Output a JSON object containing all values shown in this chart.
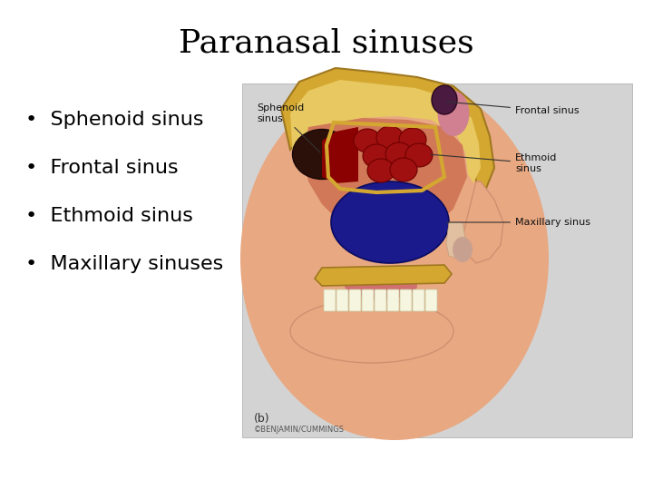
{
  "title": "Paranasal sinuses",
  "title_fontsize": 26,
  "background_color": "#ffffff",
  "bullet_points": [
    "Sphenoid sinus",
    "Frontal sinus",
    "Ethmoid sinus",
    "Maxillary sinuses"
  ],
  "bullet_fontsize": 16,
  "image_bg_color": "#d3d3d3",
  "skin_color": "#E8A882",
  "skin_dark": "#D09070",
  "bone_color": "#D4A830",
  "bone_inner": "#E8C860",
  "sphenoid_color": "#2A1008",
  "ethmoid_color": "#A01010",
  "ethmoid_edge": "#700000",
  "maxillary_color": "#1A1A8C",
  "frontal_color": "#B06878",
  "red_sinus": "#8B0000",
  "nasal_pink": "#E06060",
  "teeth_color": "#F5F5E0",
  "soft_tissue": "#C07878"
}
